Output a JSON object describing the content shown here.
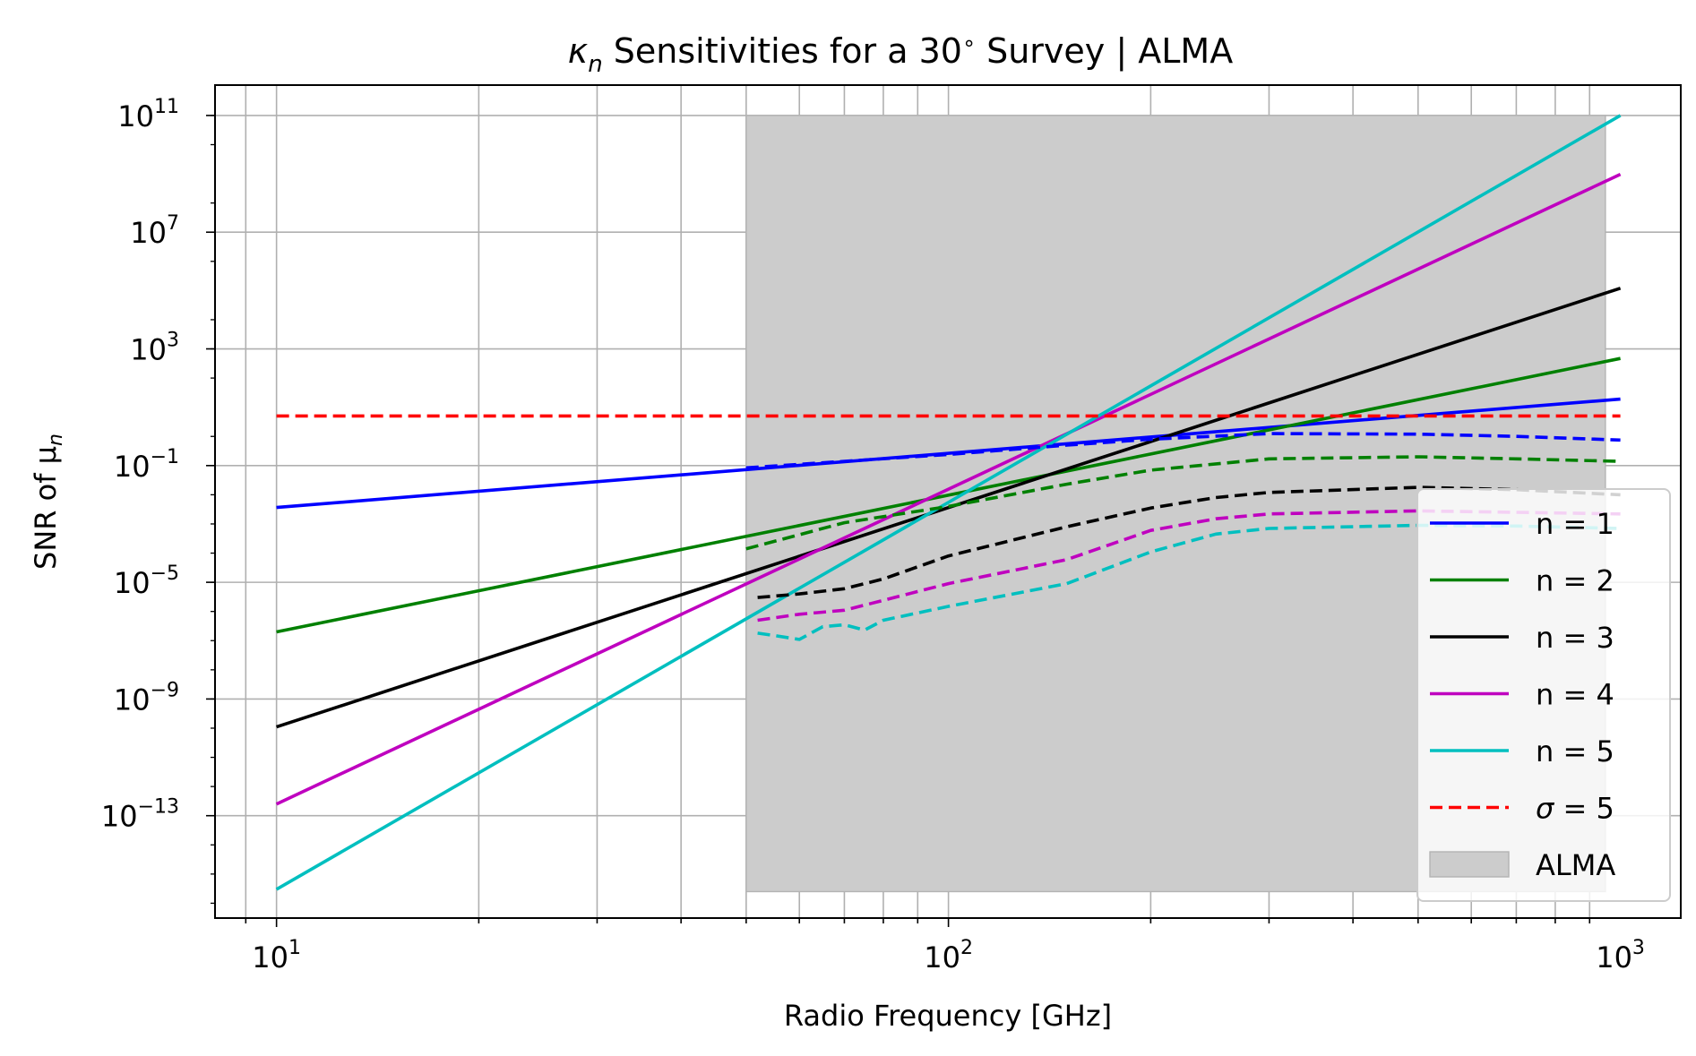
{
  "chart_data": {
    "type": "line",
    "title": "κ",
    "title_sub": "n",
    "title_rest": " Sensitivities for a 30",
    "title_deg": "∘",
    "title_tail": " Survey | ALMA",
    "xlabel": "Radio Frequency [GHz]",
    "ylabel": "SNR of μ",
    "ylabel_sub": "n",
    "x_scale": "log",
    "y_scale": "log",
    "xlim": [
      8.1,
      1230
    ],
    "ylim": [
      3.1e-17,
      1100000000000.0
    ],
    "grid": true,
    "legend_position": "lower right",
    "x_ticks": [
      {
        "value": 10,
        "base": "10",
        "exp": "1"
      },
      {
        "value": 100,
        "base": "10",
        "exp": "2"
      },
      {
        "value": 1000,
        "base": "10",
        "exp": "3"
      }
    ],
    "y_ticks": [
      {
        "value": 100000000000.0,
        "base": "10",
        "exp": "11"
      },
      {
        "value": 10000000.0,
        "base": "10",
        "exp": "7"
      },
      {
        "value": 1000.0,
        "base": "10",
        "exp": "3"
      },
      {
        "value": 0.1,
        "base": "10",
        "exp": "−1"
      },
      {
        "value": 1e-05,
        "base": "10",
        "exp": "−5"
      },
      {
        "value": 1e-09,
        "base": "10",
        "exp": "−9"
      },
      {
        "value": 1e-13,
        "base": "10",
        "exp": "−13"
      }
    ],
    "band": {
      "name": "ALMA",
      "x": [
        50,
        950
      ],
      "y": [
        2.5e-16,
        100000000000.0
      ],
      "color": "#cccccc"
    },
    "series": [
      {
        "name": "n = 1",
        "color": "#0000ff",
        "style": "solid",
        "x": [
          10,
          1000
        ],
        "y": [
          0.00365,
          19
        ]
      },
      {
        "name": "n = 2",
        "color": "#008000",
        "style": "solid",
        "x": [
          10,
          1000
        ],
        "y": [
          2e-07,
          470
        ]
      },
      {
        "name": "n = 3",
        "color": "#000000",
        "style": "solid",
        "x": [
          10,
          1000
        ],
        "y": [
          1.1e-10,
          120000.0
        ]
      },
      {
        "name": "n = 4",
        "color": "#bf00bf",
        "style": "solid",
        "x": [
          10,
          1000
        ],
        "y": [
          2.5e-13,
          960000000.0
        ]
      },
      {
        "name": "n = 5",
        "color": "#00bfbf",
        "style": "solid",
        "x": [
          10,
          1000
        ],
        "y": [
          3e-16,
          100000000000.0
        ]
      },
      {
        "name": "",
        "color": "#0000ff",
        "style": "dashed",
        "x": [
          50,
          100,
          150,
          200,
          300,
          500,
          700,
          1000
        ],
        "y": [
          0.084,
          0.24,
          0.5,
          0.8,
          1.25,
          1.2,
          1.0,
          0.75
        ]
      },
      {
        "name": "",
        "color": "#008000",
        "style": "dashed",
        "x": [
          50,
          70,
          100,
          150,
          200,
          300,
          500,
          700,
          1000
        ],
        "y": [
          0.00014,
          0.0011,
          0.004,
          0.023,
          0.07,
          0.17,
          0.2,
          0.17,
          0.14
        ]
      },
      {
        "name": "",
        "color": "#000000",
        "style": "dashed",
        "x": [
          52,
          60,
          70,
          80,
          100,
          150,
          200,
          250,
          300,
          500,
          700,
          1000
        ],
        "y": [
          3e-06,
          4e-06,
          6e-06,
          1.3e-05,
          8e-05,
          0.0008,
          0.0035,
          0.008,
          0.012,
          0.018,
          0.015,
          0.01
        ]
      },
      {
        "name": "",
        "color": "#bf00bf",
        "style": "dashed",
        "x": [
          52,
          60,
          70,
          80,
          100,
          150,
          200,
          250,
          300,
          500,
          700,
          1000
        ],
        "y": [
          5e-07,
          8e-07,
          1.1e-06,
          2.4e-06,
          9e-06,
          6e-05,
          0.0006,
          0.0015,
          0.0022,
          0.0028,
          0.0025,
          0.0022
        ]
      },
      {
        "name": "",
        "color": "#00bfbf",
        "style": "dashed",
        "x": [
          52,
          55,
          60,
          65,
          70,
          75,
          80,
          100,
          150,
          200,
          250,
          300,
          500,
          700,
          1000
        ],
        "y": [
          1.8e-07,
          1.5e-07,
          1.1e-07,
          3e-07,
          3.5e-07,
          2.3e-07,
          5e-07,
          1.5e-06,
          9e-06,
          0.00011,
          0.00045,
          0.0007,
          0.0009,
          0.00085,
          0.0007
        ]
      }
    ],
    "threshold": {
      "name": "σ = 5",
      "value": 5,
      "color": "#ff0000",
      "style": "dashed",
      "x": [
        10,
        1000
      ]
    },
    "legend": [
      {
        "label": "n = 1",
        "color": "#0000ff",
        "kind": "solid"
      },
      {
        "label": "n = 2",
        "color": "#008000",
        "kind": "solid"
      },
      {
        "label": "n = 3",
        "color": "#000000",
        "kind": "solid"
      },
      {
        "label": "n = 4",
        "color": "#bf00bf",
        "kind": "solid"
      },
      {
        "label": "n = 5",
        "color": "#00bfbf",
        "kind": "solid"
      },
      {
        "label": "σ = 5",
        "color": "#ff0000",
        "kind": "dashed"
      },
      {
        "label": "ALMA",
        "color": "#cccccc",
        "kind": "patch"
      }
    ]
  }
}
